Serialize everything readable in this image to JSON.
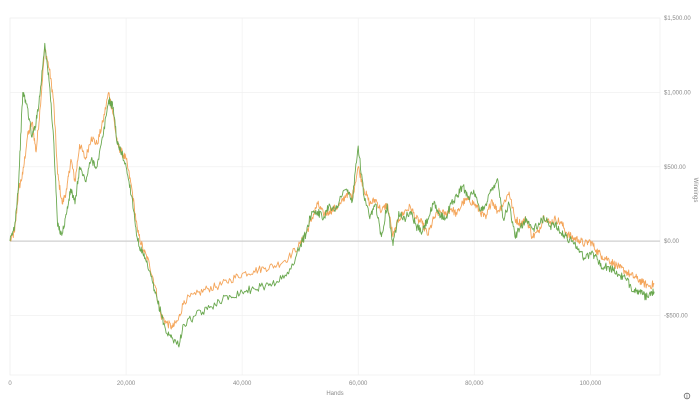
{
  "chart_data": {
    "type": "line",
    "xlabel": "Hands",
    "ylabel": "Winnings",
    "xlim": [
      0,
      112000
    ],
    "ylim": [
      -900,
      1500
    ],
    "x_ticks": [
      {
        "value": 0,
        "label": "0"
      },
      {
        "value": 20000,
        "label": "20,000"
      },
      {
        "value": 40000,
        "label": "40,000"
      },
      {
        "value": 60000,
        "label": "60,000"
      },
      {
        "value": 80000,
        "label": "80,000"
      },
      {
        "value": 100000,
        "label": "100,000"
      }
    ],
    "y_ticks": [
      {
        "value": 1500,
        "label": "$1,500.00"
      },
      {
        "value": 1000,
        "label": "$1,000.00"
      },
      {
        "value": 500,
        "label": "$500.00"
      },
      {
        "value": 0,
        "label": "$0.00"
      },
      {
        "value": -500,
        "label": "-$500.00"
      }
    ],
    "grid": true,
    "info_icon": "info-icon",
    "series": [
      {
        "color": "#f4a55a",
        "x": [
          0,
          800,
          1500,
          2200,
          3000,
          3800,
          4500,
          5200,
          6000,
          6800,
          7500,
          8200,
          9000,
          9800,
          10500,
          11200,
          12000,
          13000,
          14000,
          15000,
          16000,
          17000,
          17800,
          18500,
          19200,
          20000,
          21000,
          22000,
          23000,
          24000,
          25000,
          26000,
          27000,
          28000,
          29000,
          30000,
          32000,
          34000,
          36000,
          38000,
          40000,
          42000,
          44000,
          46000,
          48000,
          50000,
          51000,
          52000,
          53000,
          54000,
          55000,
          56000,
          57000,
          58000,
          59000,
          60000,
          61000,
          62000,
          63000,
          64000,
          65000,
          66000,
          67000,
          68000,
          69000,
          70000,
          71000,
          72000,
          73000,
          74000,
          75000,
          76000,
          77000,
          78000,
          79000,
          80000,
          81000,
          82000,
          83000,
          84000,
          85000,
          86000,
          87000,
          88000,
          89000,
          90000,
          91000,
          92000,
          93000,
          94000,
          95000,
          96000,
          97000,
          98000,
          99000,
          100000,
          101000,
          102000,
          103000,
          104000,
          105000,
          106000,
          107000,
          108000,
          109000,
          110000,
          111000
        ],
        "values": [
          0,
          60,
          350,
          450,
          700,
          800,
          600,
          900,
          1300,
          1150,
          950,
          450,
          250,
          350,
          550,
          400,
          650,
          550,
          700,
          650,
          800,
          1000,
          850,
          650,
          600,
          550,
          350,
          60,
          -60,
          -150,
          -300,
          -500,
          -550,
          -580,
          -530,
          -400,
          -360,
          -320,
          -300,
          -260,
          -220,
          -200,
          -180,
          -160,
          -110,
          -20,
          50,
          150,
          250,
          180,
          200,
          220,
          250,
          320,
          300,
          500,
          350,
          250,
          280,
          200,
          250,
          30,
          150,
          200,
          230,
          150,
          120,
          40,
          150,
          200,
          180,
          220,
          180,
          260,
          280,
          250,
          200,
          150,
          280,
          200,
          250,
          330,
          150,
          120,
          150,
          30,
          60,
          170,
          120,
          150,
          120,
          50,
          20,
          10,
          -20,
          0,
          -60,
          -100,
          -120,
          -150,
          -180,
          -200,
          -230,
          -250,
          -280,
          -300,
          -290
        ]
      },
      {
        "color": "#6aa84f",
        "x": [
          0,
          800,
          1500,
          2200,
          3000,
          3800,
          4500,
          5200,
          6000,
          6800,
          7500,
          8200,
          9000,
          9800,
          10500,
          11200,
          12000,
          13000,
          14000,
          15000,
          16000,
          17000,
          17800,
          18500,
          19200,
          20000,
          21000,
          22000,
          23000,
          24000,
          25000,
          26000,
          27000,
          28000,
          29000,
          30000,
          32000,
          34000,
          36000,
          38000,
          40000,
          42000,
          44000,
          46000,
          48000,
          50000,
          51000,
          52000,
          53000,
          54000,
          55000,
          56000,
          57000,
          58000,
          59000,
          60000,
          61000,
          62000,
          63000,
          64000,
          65000,
          66000,
          67000,
          68000,
          69000,
          70000,
          71000,
          72000,
          73000,
          74000,
          75000,
          76000,
          77000,
          78000,
          79000,
          80000,
          81000,
          82000,
          83000,
          84000,
          85000,
          86000,
          87000,
          88000,
          89000,
          90000,
          91000,
          92000,
          93000,
          94000,
          95000,
          96000,
          97000,
          98000,
          99000,
          100000,
          101000,
          102000,
          103000,
          104000,
          105000,
          106000,
          107000,
          108000,
          109000,
          110000,
          111000
        ],
        "values": [
          0,
          100,
          400,
          1000,
          900,
          700,
          800,
          1000,
          1330,
          1050,
          700,
          100,
          50,
          200,
          350,
          250,
          500,
          400,
          550,
          500,
          700,
          950,
          900,
          650,
          600,
          500,
          300,
          0,
          -100,
          -200,
          -350,
          -480,
          -620,
          -650,
          -700,
          -560,
          -500,
          -460,
          -400,
          -370,
          -340,
          -320,
          -300,
          -270,
          -220,
          -30,
          50,
          200,
          200,
          150,
          250,
          200,
          300,
          350,
          270,
          640,
          300,
          150,
          250,
          30,
          250,
          -30,
          200,
          150,
          200,
          100,
          60,
          150,
          250,
          180,
          150,
          250,
          300,
          370,
          300,
          320,
          200,
          250,
          350,
          420,
          150,
          250,
          30,
          100,
          150,
          80,
          100,
          160,
          100,
          120,
          50,
          20,
          0,
          -50,
          -120,
          -80,
          -100,
          -180,
          -170,
          -200,
          -230,
          -250,
          -310,
          -330,
          -360,
          -380,
          -340
        ]
      }
    ]
  }
}
